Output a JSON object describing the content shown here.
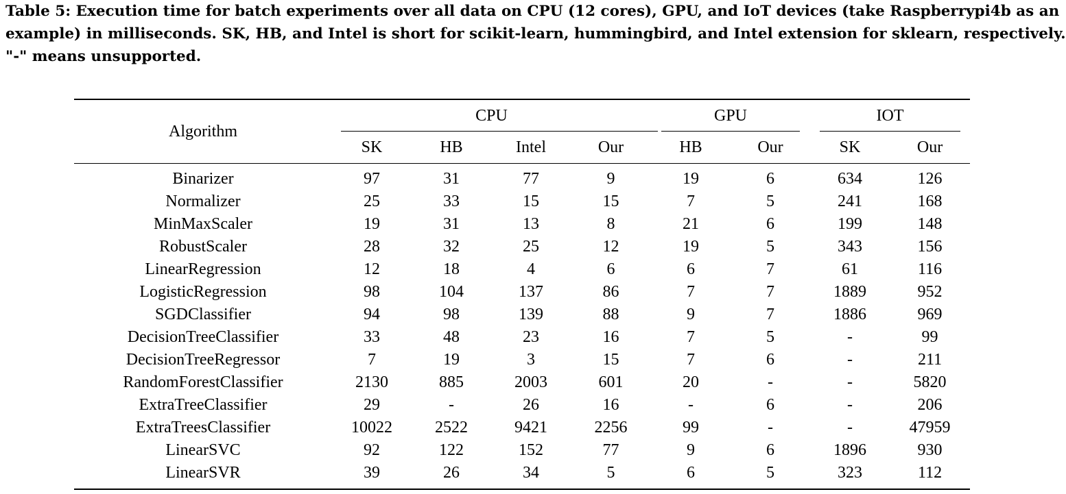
{
  "caption": {
    "lines": [
      "Table 5: Execution time for batch experiments over all data on CPU (12 cores), GPU, and IoT devices (take Raspberrypi4b as an",
      "example) in milliseconds. SK, HB, and Intel is short for scikit-learn, hummingbird, and Intel extension for sklearn, respectively.",
      "\"-\" means unsupported."
    ]
  },
  "table": {
    "row_header": "Algorithm",
    "groups": [
      "CPU",
      "GPU",
      "IOT"
    ],
    "subheaders": [
      "SK",
      "HB",
      "Intel",
      "Our",
      "HB",
      "Our",
      "SK",
      "Our"
    ],
    "rows": [
      {
        "name": "Binarizer",
        "cells": [
          "97",
          "31",
          "77",
          "9",
          "19",
          "6",
          "634",
          "126"
        ],
        "bold": [
          3,
          5,
          7
        ]
      },
      {
        "name": "Normalizer",
        "cells": [
          "25",
          "33",
          "15",
          "15",
          "7",
          "5",
          "241",
          "168"
        ],
        "bold": [
          2,
          3,
          5,
          7
        ]
      },
      {
        "name": "MinMaxScaler",
        "cells": [
          "19",
          "31",
          "13",
          "8",
          "21",
          "6",
          "199",
          "148"
        ],
        "bold": [
          3,
          5,
          7
        ]
      },
      {
        "name": "RobustScaler",
        "cells": [
          "28",
          "32",
          "25",
          "12",
          "19",
          "5",
          "343",
          "156"
        ],
        "bold": [
          3,
          5,
          7
        ]
      },
      {
        "name": "LinearRegression",
        "cells": [
          "12",
          "18",
          "4",
          "6",
          "6",
          "7",
          "61",
          "116"
        ],
        "bold": [
          2,
          4,
          6
        ]
      },
      {
        "name": "LogisticRegression",
        "cells": [
          "98",
          "104",
          "137",
          "86",
          "7",
          "7",
          "1889",
          "952"
        ],
        "bold": [
          3,
          4,
          5,
          7
        ]
      },
      {
        "name": "SGDClassifier",
        "cells": [
          "94",
          "98",
          "139",
          "88",
          "9",
          "7",
          "1886",
          "969"
        ],
        "bold": [
          3,
          5,
          7
        ]
      },
      {
        "name": "DecisionTreeClassifier",
        "cells": [
          "33",
          "48",
          "23",
          "16",
          "7",
          "5",
          "-",
          "99"
        ],
        "bold": [
          3,
          5,
          7
        ]
      },
      {
        "name": "DecisionTreeRegressor",
        "cells": [
          "7",
          "19",
          "3",
          "15",
          "7",
          "6",
          "-",
          "211"
        ],
        "bold": [
          2,
          5,
          7
        ]
      },
      {
        "name": "RandomForestClassifier",
        "cells": [
          "2130",
          "885",
          "2003",
          "601",
          "20",
          "-",
          "-",
          "5820"
        ],
        "bold": [
          3,
          4,
          7
        ]
      },
      {
        "name": "ExtraTreeClassifier",
        "cells": [
          "29",
          "-",
          "26",
          "16",
          "-",
          "6",
          "-",
          "206"
        ],
        "bold": [
          3,
          5,
          7
        ]
      },
      {
        "name": "ExtraTreesClassifier",
        "cells": [
          "10022",
          "2522",
          "9421",
          "2256",
          "99",
          "-",
          "-",
          "47959"
        ],
        "bold": [
          3,
          4,
          7
        ]
      },
      {
        "name": "LinearSVC",
        "cells": [
          "92",
          "122",
          "152",
          "77",
          "9",
          "6",
          "1896",
          "930"
        ],
        "bold": [
          3,
          5,
          7
        ]
      },
      {
        "name": "LinearSVR",
        "cells": [
          "39",
          "26",
          "34",
          "5",
          "6",
          "5",
          "323",
          "112"
        ],
        "bold": [
          3,
          5,
          7
        ]
      }
    ]
  }
}
